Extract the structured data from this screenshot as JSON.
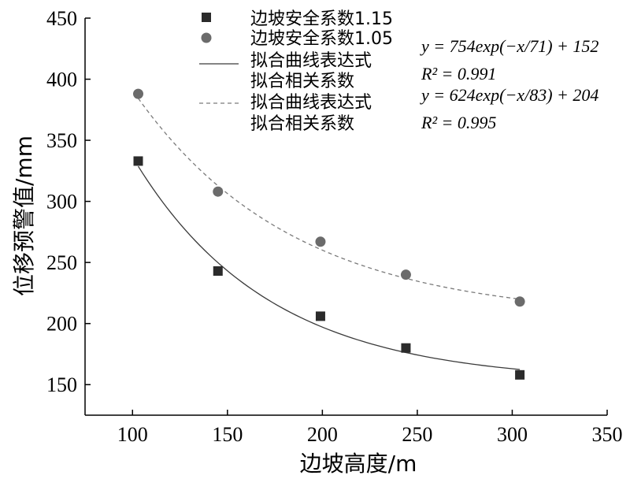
{
  "chart_data": {
    "type": "scatter",
    "xlabel": "边坡高度/m",
    "ylabel": "位移预警值/mm",
    "xlim": [
      75,
      350
    ],
    "ylim": [
      125,
      450
    ],
    "xticks": [
      100,
      150,
      200,
      250,
      300,
      350
    ],
    "yticks": [
      150,
      200,
      250,
      300,
      350,
      400,
      450
    ],
    "legend_position": "top-center",
    "series": [
      {
        "name": "边坡安全系数1.15",
        "marker": "square",
        "color": "#2b2b2b",
        "x": [
          103,
          145,
          199,
          244,
          304
        ],
        "y": [
          333,
          243,
          206,
          180,
          158
        ]
      },
      {
        "name": "边坡安全系数1.05",
        "marker": "circle",
        "color": "#6b6b6b",
        "x": [
          103,
          145,
          199,
          244,
          304
        ],
        "y": [
          388,
          308,
          267,
          240,
          218
        ]
      }
    ],
    "fits": [
      {
        "legend_line1": "拟合曲线表达式",
        "legend_line2": "拟合相关系数",
        "style": "solid",
        "color": "#3a3a3a",
        "a": 754,
        "b": 71,
        "c": 152,
        "x_range": [
          103,
          304
        ],
        "equation": "y = 754exp(−x/71) + 152",
        "r2": "R² = 0.991"
      },
      {
        "legend_line1": "拟合曲线表达式",
        "legend_line2": "拟合相关系数",
        "style": "dashed",
        "color": "#7a7a7a",
        "a": 624,
        "b": 83,
        "c": 204,
        "x_range": [
          103,
          304
        ],
        "equation": "y = 624exp(−x/83) + 204",
        "r2": "R² = 0.995"
      }
    ]
  }
}
